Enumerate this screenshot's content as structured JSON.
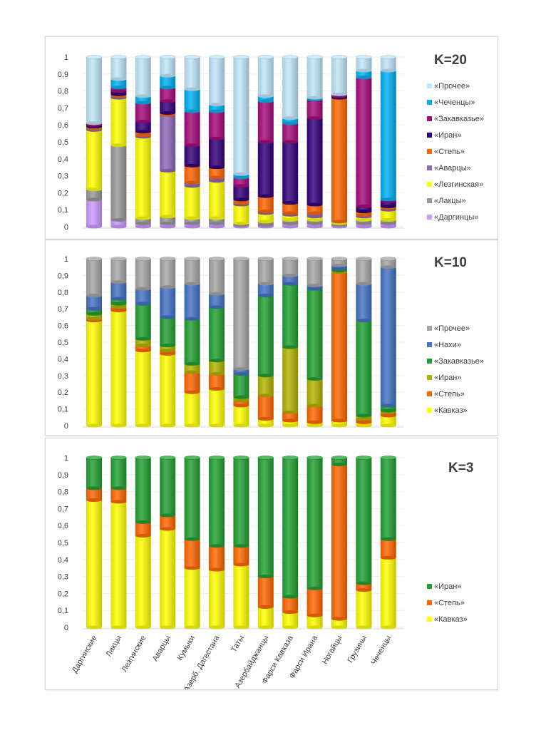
{
  "chart_data": [
    {
      "type": "bar",
      "stacked": true,
      "title": "K=20",
      "ylim": [
        0,
        1
      ],
      "yticks": [
        "0",
        "0,1",
        "0,2",
        "0,3",
        "0,4",
        "0,5",
        "0,6",
        "0,7",
        "0,8",
        "0,9",
        "1"
      ],
      "categories": [
        "Даргинские",
        "Лакцы",
        "Лезгинские",
        "Аварцы",
        "Кумыки",
        "Азерб. Дагестана",
        "Таты",
        "Азербайджанцы",
        "Фарси Кавказа",
        "Фарси Ирана",
        "Ногайцы",
        "Грузины",
        "Чеченцы"
      ],
      "series": [
        {
          "name": "«Даргинцы»",
          "color": "#cc99ff",
          "values": [
            0.16,
            0.04,
            0.02,
            0.02,
            0.02,
            0.02,
            0.01,
            0.01,
            0.02,
            0.02,
            0.01,
            0.02,
            0.02
          ]
        },
        {
          "name": "«Лакцы»",
          "color": "#999999",
          "values": [
            0.06,
            0.44,
            0.03,
            0.04,
            0.03,
            0.03,
            0.01,
            0.02,
            0.02,
            0.02,
            0.01,
            0.02,
            0.02
          ]
        },
        {
          "name": "«Лезгинская»",
          "color": "#ffff00",
          "values": [
            0.35,
            0.28,
            0.48,
            0.27,
            0.19,
            0.22,
            0.11,
            0.05,
            0.03,
            0.02,
            0.01,
            0.02,
            0.06
          ]
        },
        {
          "name": "«Аварцы»",
          "color": "#8e68b8",
          "values": [
            0.01,
            0.01,
            0.01,
            0.33,
            0.02,
            0.02,
            0.01,
            0.01,
            0.01,
            0.02,
            0.0,
            0.01,
            0.01
          ]
        },
        {
          "name": "«Степь»",
          "color": "#ff6600",
          "values": [
            0.01,
            0.01,
            0.02,
            0.01,
            0.1,
            0.06,
            0.02,
            0.09,
            0.06,
            0.05,
            0.73,
            0.02,
            0.01
          ]
        },
        {
          "name": "«Иран»",
          "color": "#33007a",
          "values": [
            0.01,
            0.02,
            0.06,
            0.07,
            0.12,
            0.17,
            0.08,
            0.32,
            0.36,
            0.51,
            0.01,
            0.03,
            0.03
          ]
        },
        {
          "name": "«Закавказье»",
          "color": "#a50a7a",
          "values": [
            0.01,
            0.02,
            0.11,
            0.08,
            0.2,
            0.16,
            0.05,
            0.24,
            0.11,
            0.11,
            0.01,
            0.76,
            0.01
          ]
        },
        {
          "name": "«Чеченцы»",
          "color": "#00b0f0",
          "values": [
            0.0,
            0.05,
            0.04,
            0.07,
            0.13,
            0.04,
            0.02,
            0.03,
            0.03,
            0.01,
            0.0,
            0.04,
            0.76
          ]
        },
        {
          "name": "«Прочее»",
          "color": "#bfe7fa",
          "values": [
            0.39,
            0.13,
            0.23,
            0.11,
            0.19,
            0.28,
            0.69,
            0.23,
            0.36,
            0.24,
            0.22,
            0.08,
            0.08
          ]
        }
      ],
      "legend_position": "right"
    },
    {
      "type": "bar",
      "stacked": true,
      "title": "K=10",
      "ylim": [
        0,
        1
      ],
      "yticks": [
        "0",
        "0,1",
        "0,2",
        "0,3",
        "0,4",
        "0,5",
        "0,6",
        "0,7",
        "0,8",
        "0,9",
        "1"
      ],
      "categories": [
        "Даргинские",
        "Лакцы",
        "Лезгинские",
        "Аварцы",
        "Кумыки",
        "Азерб. Дагестана",
        "Таты",
        "Азербайджанцы",
        "Фарси Кавказа",
        "Фарси Ирана",
        "Ногайцы",
        "Грузины",
        "Чеченцы"
      ],
      "series": [
        {
          "name": "«Кавказ»",
          "color": "#ffff00",
          "values": [
            0.63,
            0.69,
            0.45,
            0.43,
            0.2,
            0.22,
            0.12,
            0.04,
            0.03,
            0.02,
            0.03,
            0.02,
            0.06
          ]
        },
        {
          "name": "«Степь»",
          "color": "#ff6600",
          "values": [
            0.01,
            0.02,
            0.03,
            0.02,
            0.12,
            0.09,
            0.03,
            0.14,
            0.05,
            0.1,
            0.89,
            0.02,
            0.02
          ]
        },
        {
          "name": "«Иран»",
          "color": "#b2b300",
          "values": [
            0.03,
            0.02,
            0.04,
            0.03,
            0.05,
            0.08,
            0.02,
            0.12,
            0.39,
            0.16,
            0.01,
            0.02,
            0.01
          ]
        },
        {
          "name": "«Закавказье»",
          "color": "#22a032",
          "values": [
            0.03,
            0.03,
            0.21,
            0.17,
            0.27,
            0.32,
            0.14,
            0.48,
            0.38,
            0.54,
            0.01,
            0.57,
            0.03
          ]
        },
        {
          "name": "«Нахи»",
          "color": "#4472c4",
          "values": [
            0.08,
            0.1,
            0.09,
            0.18,
            0.21,
            0.08,
            0.03,
            0.07,
            0.05,
            0.02,
            0.02,
            0.22,
            0.83
          ]
        },
        {
          "name": "«Прочее»",
          "color": "#a6a6a6",
          "values": [
            0.22,
            0.14,
            0.18,
            0.17,
            0.15,
            0.21,
            0.66,
            0.15,
            0.1,
            0.16,
            0.04,
            0.15,
            0.05
          ]
        }
      ],
      "legend_position": "right"
    },
    {
      "type": "bar",
      "stacked": true,
      "title": "K=3",
      "ylim": [
        0,
        1
      ],
      "yticks": [
        "0",
        "0,1",
        "0,2",
        "0,3",
        "0,4",
        "0,5",
        "0,6",
        "0,7",
        "0,8",
        "0,9",
        "1"
      ],
      "categories": [
        "Даргинские",
        "Лакцы",
        "Лезгинские",
        "Аварцы",
        "Кумыки",
        "Азерб. Дагестана",
        "Таты",
        "Азербайджанцы",
        "Фарси Кавказа",
        "Фарси Ирана",
        "Ногайцы",
        "Грузины",
        "Чеченцы"
      ],
      "series": [
        {
          "name": "«Кавказ»",
          "color": "#ffff00",
          "values": [
            0.75,
            0.74,
            0.54,
            0.58,
            0.35,
            0.34,
            0.37,
            0.12,
            0.09,
            0.07,
            0.05,
            0.22,
            0.41
          ]
        },
        {
          "name": "«Степь»",
          "color": "#ff6600",
          "values": [
            0.07,
            0.08,
            0.08,
            0.08,
            0.17,
            0.14,
            0.11,
            0.18,
            0.09,
            0.16,
            0.91,
            0.04,
            0.11
          ]
        },
        {
          "name": "«Иран»",
          "color": "#22a032",
          "values": [
            0.18,
            0.18,
            0.38,
            0.34,
            0.48,
            0.52,
            0.52,
            0.7,
            0.82,
            0.77,
            0.04,
            0.74,
            0.48
          ]
        }
      ],
      "legend_position": "right"
    }
  ]
}
